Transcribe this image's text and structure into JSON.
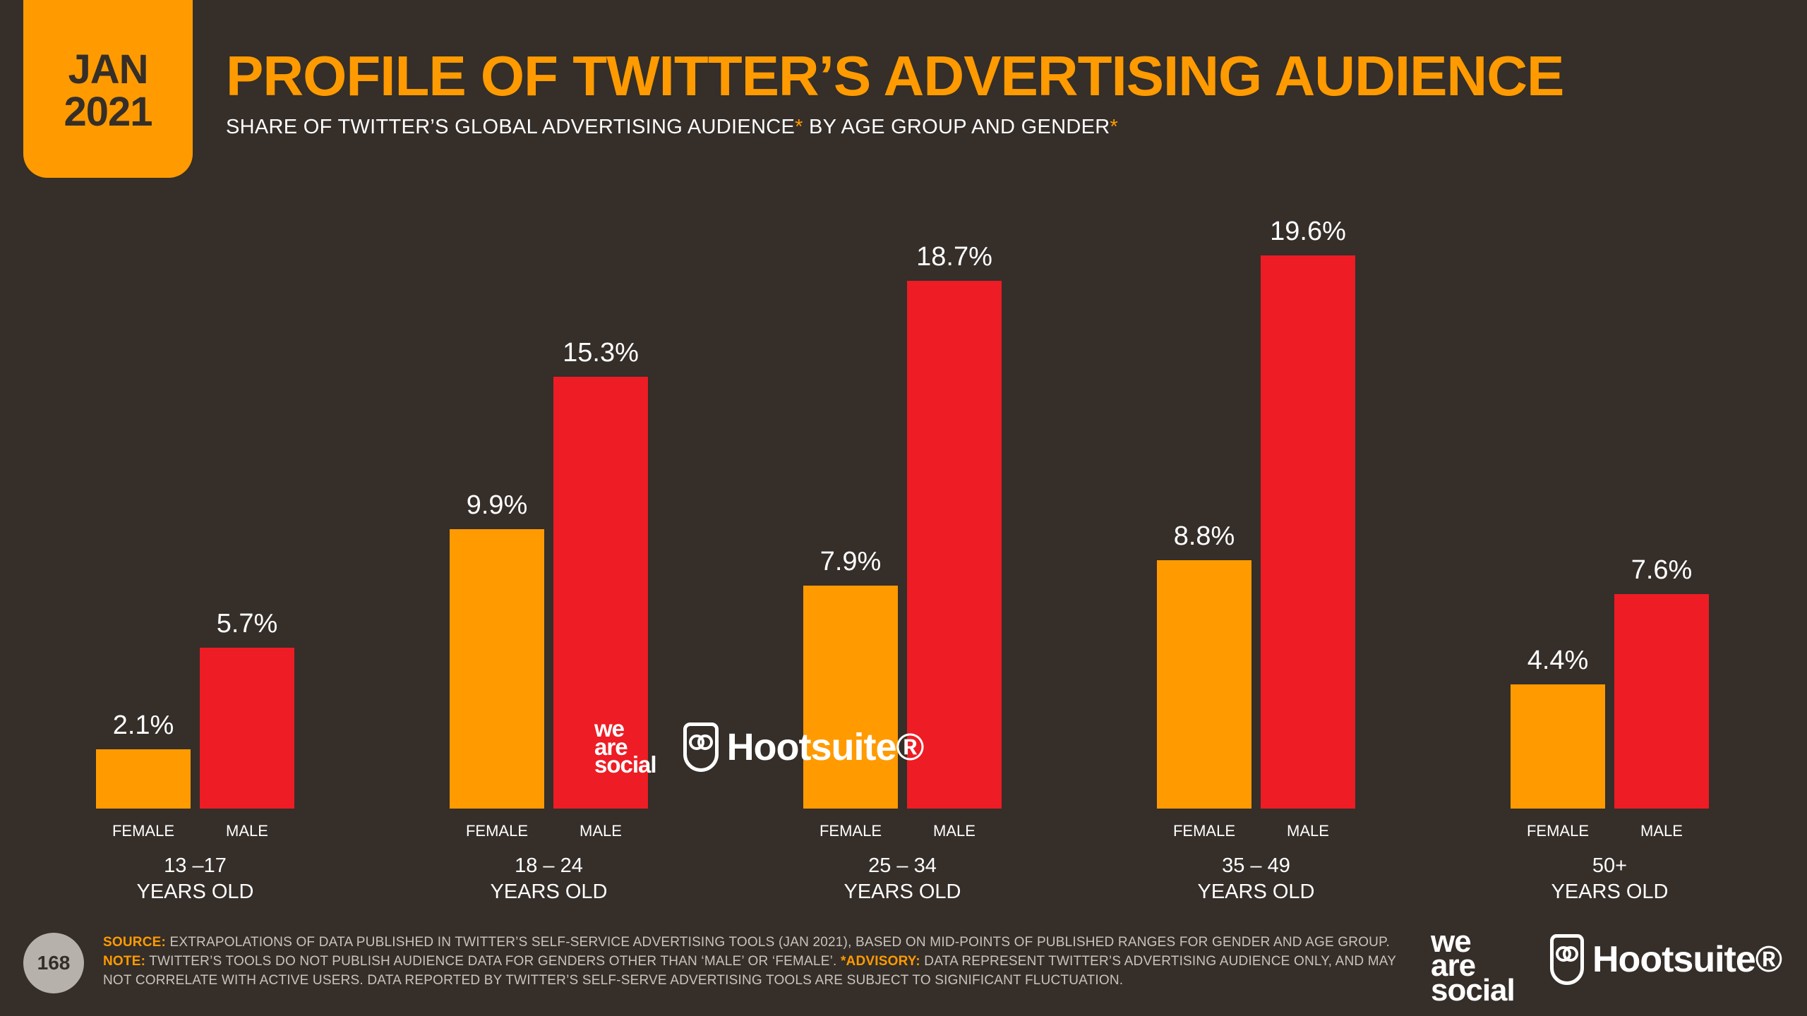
{
  "header": {
    "date_month": "JAN",
    "date_year": "2021",
    "title": "PROFILE OF TWITTER’S ADVERTISING AUDIENCE",
    "subtitle_part1": "SHARE OF TWITTER’S GLOBAL ADVERTISING AUDIENCE",
    "subtitle_mark1": "*",
    "subtitle_part2": " BY AGE GROUP AND GENDER",
    "subtitle_mark2": "*"
  },
  "colors": {
    "female": "#ff9b00",
    "male": "#ee1c24",
    "background": "#352e29",
    "accent": "#ff9b00"
  },
  "chart_data": {
    "type": "bar",
    "categories": [
      {
        "line1": "13 –17",
        "line2": "YEARS OLD"
      },
      {
        "line1": "18 – 24",
        "line2": "YEARS OLD"
      },
      {
        "line1": "25 – 34",
        "line2": "YEARS OLD"
      },
      {
        "line1": "35 – 49",
        "line2": "YEARS OLD"
      },
      {
        "line1": "50+",
        "line2": "YEARS OLD"
      }
    ],
    "series": [
      {
        "name": "FEMALE",
        "values": [
          2.1,
          9.9,
          7.9,
          8.8,
          4.4
        ],
        "labels": [
          "2.1%",
          "9.9%",
          "7.9%",
          "8.8%",
          "4.4%"
        ]
      },
      {
        "name": "MALE",
        "values": [
          5.7,
          15.3,
          18.7,
          19.6,
          7.6
        ],
        "labels": [
          "5.7%",
          "15.3%",
          "18.7%",
          "19.6%",
          "7.6%"
        ]
      }
    ],
    "unit": "%"
  },
  "watermark": {
    "was_line1": "we",
    "was_line2": "are",
    "was_line3": "social",
    "hootsuite": "Hootsuite®"
  },
  "footer": {
    "page_number": "168",
    "source_key": "SOURCE:",
    "source_text": " EXTRAPOLATIONS OF DATA PUBLISHED IN TWITTER’S SELF-SERVICE ADVERTISING TOOLS (JAN 2021), BASED ON MID-POINTS OF PUBLISHED RANGES FOR GENDER AND AGE GROUP.",
    "note_key": "NOTE:",
    "note_text": " TWITTER’S TOOLS DO NOT PUBLISH AUDIENCE DATA FOR GENDERS OTHER THAN ‘MALE’ OR ‘FEMALE’. ",
    "advisory_key": "*ADVISORY:",
    "advisory_text": " DATA REPRESENT TWITTER’S ADVERTISING AUDIENCE ONLY, AND MAY NOT CORRELATE WITH ACTIVE USERS. DATA REPORTED BY TWITTER’S SELF-SERVE ADVERTISING TOOLS ARE SUBJECT TO SIGNIFICANT FLUCTUATION."
  },
  "logos": {
    "was_line1": "we",
    "was_line2": "are",
    "was_line3": "social",
    "hootsuite": "Hootsuite®"
  }
}
